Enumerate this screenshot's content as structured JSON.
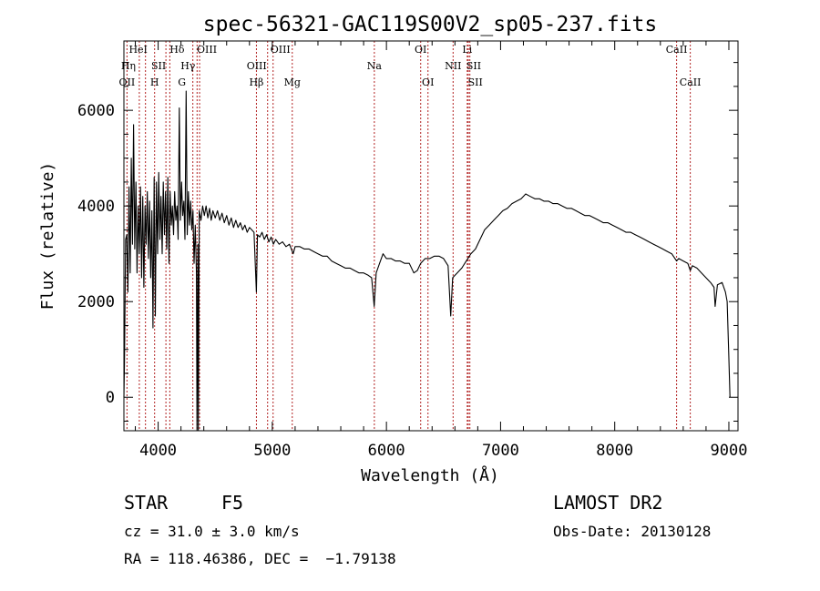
{
  "chart_data": {
    "type": "line",
    "title": "spec-56321-GAC119S00V2_sp05-237.fits",
    "xlabel": "Wavelength (Å)",
    "ylabel": "Flux (relative)",
    "xlim": [
      3700,
      9080
    ],
    "ylim": [
      -700,
      7450
    ],
    "xticks": [
      4000,
      5000,
      6000,
      7000,
      8000,
      9000
    ],
    "yticks": [
      0,
      2000,
      4000,
      6000
    ],
    "grid": false,
    "series": [
      {
        "points": [
          [
            3700,
            0
          ],
          [
            3705,
            700
          ],
          [
            3715,
            3300
          ],
          [
            3725,
            3400
          ],
          [
            3735,
            2200
          ],
          [
            3745,
            4400
          ],
          [
            3755,
            2600
          ],
          [
            3765,
            5000
          ],
          [
            3775,
            3200
          ],
          [
            3785,
            5700
          ],
          [
            3795,
            3100
          ],
          [
            3805,
            4500
          ],
          [
            3815,
            2600
          ],
          [
            3825,
            4000
          ],
          [
            3835,
            3000
          ],
          [
            3845,
            4400
          ],
          [
            3855,
            2500
          ],
          [
            3865,
            4200
          ],
          [
            3875,
            2300
          ],
          [
            3885,
            4000
          ],
          [
            3895,
            3200
          ],
          [
            3905,
            4300
          ],
          [
            3915,
            2900
          ],
          [
            3925,
            4100
          ],
          [
            3935,
            2500
          ],
          [
            3945,
            3900
          ],
          [
            3955,
            1450
          ],
          [
            3965,
            4600
          ],
          [
            3975,
            1700
          ],
          [
            3985,
            4500
          ],
          [
            3995,
            3000
          ],
          [
            4005,
            4700
          ],
          [
            4015,
            3300
          ],
          [
            4025,
            4200
          ],
          [
            4035,
            3000
          ],
          [
            4045,
            4500
          ],
          [
            4055,
            3400
          ],
          [
            4065,
            4300
          ],
          [
            4075,
            3100
          ],
          [
            4085,
            4600
          ],
          [
            4095,
            2800
          ],
          [
            4105,
            4300
          ],
          [
            4115,
            3600
          ],
          [
            4125,
            4000
          ],
          [
            4135,
            3400
          ],
          [
            4145,
            4300
          ],
          [
            4155,
            3700
          ],
          [
            4165,
            4000
          ],
          [
            4175,
            3300
          ],
          [
            4185,
            6050
          ],
          [
            4195,
            3700
          ],
          [
            4205,
            4500
          ],
          [
            4215,
            3800
          ],
          [
            4225,
            4100
          ],
          [
            4235,
            3300
          ],
          [
            4245,
            6400
          ],
          [
            4255,
            3400
          ],
          [
            4265,
            4300
          ],
          [
            4275,
            3600
          ],
          [
            4285,
            4100
          ],
          [
            4295,
            3500
          ],
          [
            4305,
            3900
          ],
          [
            4315,
            2800
          ],
          [
            4325,
            3600
          ],
          [
            4335,
            2600
          ],
          [
            4340,
            -700
          ],
          [
            4348,
            3200
          ],
          [
            4352,
            -700
          ],
          [
            4360,
            3900
          ],
          [
            4375,
            3700
          ],
          [
            4390,
            4000
          ],
          [
            4405,
            3800
          ],
          [
            4420,
            4000
          ],
          [
            4435,
            3750
          ],
          [
            4450,
            3950
          ],
          [
            4465,
            3700
          ],
          [
            4480,
            3900
          ],
          [
            4500,
            3750
          ],
          [
            4520,
            3900
          ],
          [
            4540,
            3700
          ],
          [
            4560,
            3850
          ],
          [
            4580,
            3650
          ],
          [
            4600,
            3800
          ],
          [
            4620,
            3600
          ],
          [
            4640,
            3750
          ],
          [
            4660,
            3550
          ],
          [
            4680,
            3700
          ],
          [
            4700,
            3550
          ],
          [
            4720,
            3650
          ],
          [
            4740,
            3500
          ],
          [
            4760,
            3600
          ],
          [
            4780,
            3450
          ],
          [
            4800,
            3550
          ],
          [
            4820,
            3500
          ],
          [
            4840,
            3450
          ],
          [
            4861,
            2200
          ],
          [
            4870,
            3400
          ],
          [
            4890,
            3350
          ],
          [
            4910,
            3450
          ],
          [
            4930,
            3300
          ],
          [
            4950,
            3400
          ],
          [
            4970,
            3250
          ],
          [
            4990,
            3350
          ],
          [
            5010,
            3200
          ],
          [
            5030,
            3300
          ],
          [
            5060,
            3200
          ],
          [
            5090,
            3250
          ],
          [
            5120,
            3150
          ],
          [
            5150,
            3200
          ],
          [
            5183,
            3000
          ],
          [
            5200,
            3150
          ],
          [
            5240,
            3150
          ],
          [
            5280,
            3100
          ],
          [
            5320,
            3100
          ],
          [
            5360,
            3050
          ],
          [
            5400,
            3000
          ],
          [
            5440,
            2950
          ],
          [
            5480,
            2950
          ],
          [
            5520,
            2850
          ],
          [
            5560,
            2800
          ],
          [
            5600,
            2750
          ],
          [
            5640,
            2700
          ],
          [
            5680,
            2700
          ],
          [
            5720,
            2650
          ],
          [
            5760,
            2600
          ],
          [
            5800,
            2600
          ],
          [
            5840,
            2550
          ],
          [
            5870,
            2500
          ],
          [
            5893,
            1900
          ],
          [
            5910,
            2600
          ],
          [
            5940,
            2800
          ],
          [
            5970,
            3000
          ],
          [
            6000,
            2900
          ],
          [
            6040,
            2900
          ],
          [
            6080,
            2850
          ],
          [
            6120,
            2850
          ],
          [
            6160,
            2800
          ],
          [
            6200,
            2800
          ],
          [
            6240,
            2600
          ],
          [
            6270,
            2650
          ],
          [
            6300,
            2800
          ],
          [
            6340,
            2900
          ],
          [
            6380,
            2900
          ],
          [
            6420,
            2950
          ],
          [
            6460,
            2950
          ],
          [
            6500,
            2900
          ],
          [
            6540,
            2750
          ],
          [
            6563,
            1700
          ],
          [
            6580,
            2500
          ],
          [
            6620,
            2600
          ],
          [
            6660,
            2700
          ],
          [
            6700,
            2850
          ],
          [
            6740,
            3000
          ],
          [
            6780,
            3100
          ],
          [
            6820,
            3300
          ],
          [
            6860,
            3500
          ],
          [
            6900,
            3600
          ],
          [
            6940,
            3700
          ],
          [
            6980,
            3800
          ],
          [
            7020,
            3900
          ],
          [
            7060,
            3950
          ],
          [
            7100,
            4050
          ],
          [
            7140,
            4100
          ],
          [
            7180,
            4150
          ],
          [
            7220,
            4250
          ],
          [
            7260,
            4200
          ],
          [
            7300,
            4150
          ],
          [
            7340,
            4150
          ],
          [
            7380,
            4100
          ],
          [
            7420,
            4100
          ],
          [
            7460,
            4050
          ],
          [
            7500,
            4050
          ],
          [
            7540,
            4000
          ],
          [
            7580,
            3950
          ],
          [
            7620,
            3950
          ],
          [
            7660,
            3900
          ],
          [
            7700,
            3850
          ],
          [
            7740,
            3800
          ],
          [
            7780,
            3800
          ],
          [
            7820,
            3750
          ],
          [
            7860,
            3700
          ],
          [
            7900,
            3650
          ],
          [
            7940,
            3650
          ],
          [
            7980,
            3600
          ],
          [
            8020,
            3550
          ],
          [
            8060,
            3500
          ],
          [
            8100,
            3450
          ],
          [
            8140,
            3450
          ],
          [
            8180,
            3400
          ],
          [
            8220,
            3350
          ],
          [
            8260,
            3300
          ],
          [
            8300,
            3250
          ],
          [
            8340,
            3200
          ],
          [
            8380,
            3150
          ],
          [
            8420,
            3100
          ],
          [
            8460,
            3050
          ],
          [
            8500,
            3000
          ],
          [
            8542,
            2850
          ],
          [
            8560,
            2900
          ],
          [
            8600,
            2850
          ],
          [
            8640,
            2800
          ],
          [
            8662,
            2650
          ],
          [
            8680,
            2750
          ],
          [
            8720,
            2700
          ],
          [
            8760,
            2600
          ],
          [
            8800,
            2500
          ],
          [
            8840,
            2400
          ],
          [
            8870,
            2300
          ],
          [
            8880,
            1900
          ],
          [
            8900,
            2350
          ],
          [
            8940,
            2400
          ],
          [
            8970,
            2200
          ],
          [
            8985,
            2000
          ],
          [
            9000,
            800
          ],
          [
            9010,
            0
          ]
        ]
      }
    ],
    "lines": [
      {
        "label": "OII",
        "x": 3727
      },
      {
        "label": "Hη",
        "x": 3835
      },
      {
        "label": "HeI",
        "x": 3889
      },
      {
        "label": "H",
        "x": 3969
      },
      {
        "label": "SII",
        "x": 4068
      },
      {
        "label": "Hδ",
        "x": 4102
      },
      {
        "label": "G",
        "x": 4304
      },
      {
        "label": "Hγ",
        "x": 4341
      },
      {
        "label": "OIII",
        "x": 4363
      },
      {
        "label": "Hβ",
        "x": 4861
      },
      {
        "label": "OIII",
        "x": 4959
      },
      {
        "label": "OIII",
        "x": 5007
      },
      {
        "label": "Mg",
        "x": 5175
      },
      {
        "label": "Na",
        "x": 5894
      },
      {
        "label": "OI",
        "x": 6300
      },
      {
        "label": "OI",
        "x": 6364
      },
      {
        "label": "NII",
        "x": 6584
      },
      {
        "label": "Li",
        "x": 6708
      },
      {
        "label": "SII",
        "x": 6717
      },
      {
        "label": "SII",
        "x": 6731
      },
      {
        "label": "CaII",
        "x": 8542
      },
      {
        "label": "CaII",
        "x": 8662
      }
    ]
  },
  "info": {
    "object_class": "STAR",
    "subclass": "F5",
    "survey": "LAMOST DR2",
    "cz": "cz = 31.0 ± 3.0 km/s",
    "obs_date": "Obs-Date: 20130128",
    "coords": "RA = 118.46386, DEC =  −1.79138"
  },
  "colors": {
    "axis": "#000000",
    "spectrum": "#000000",
    "line_marker": "#b22222"
  }
}
